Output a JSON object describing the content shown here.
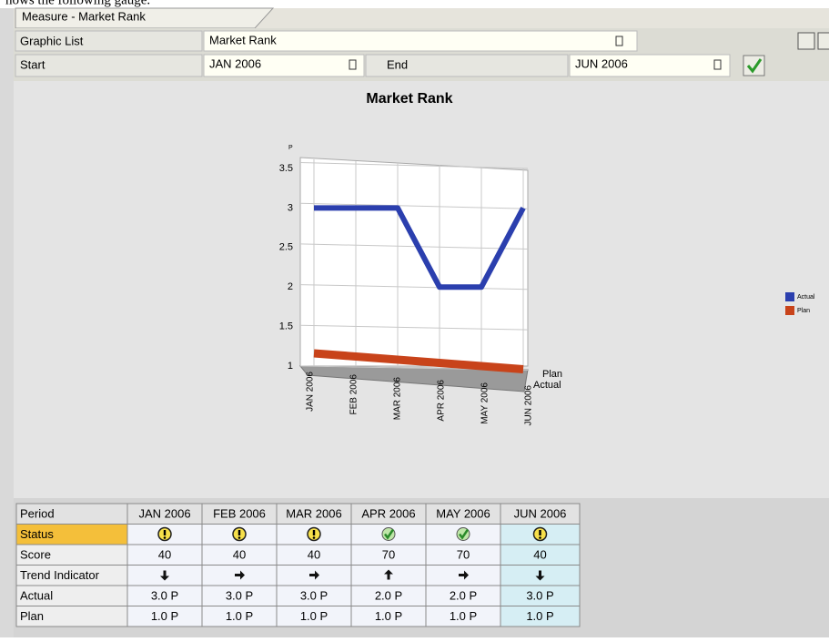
{
  "intro_text": "hows the following gauge.",
  "tab": "Measure - Market Rank",
  "form": {
    "graphic_list_label": "Graphic List",
    "graphic_list_value": "Market Rank",
    "start_label": "Start",
    "start_value": "JAN 2006",
    "end_label": "End",
    "end_value": "JUN 2006"
  },
  "chart_data": {
    "type": "line",
    "title": "Market Rank",
    "y_label": "P",
    "categories": [
      "JAN 2006",
      "FEB 2006",
      "MAR 2006",
      "APR 2006",
      "MAY 2006",
      "JUN 2006"
    ],
    "series": [
      {
        "name": "Actual",
        "color": "#2b3fae",
        "values": [
          3,
          3,
          3,
          2,
          2,
          3
        ]
      },
      {
        "name": "Plan",
        "color": "#c8431a",
        "values": [
          1,
          1,
          1,
          1,
          1,
          1
        ]
      }
    ],
    "ylim": [
      1,
      3.5
    ],
    "yticks": [
      1,
      1.5,
      2,
      2.5,
      3,
      3.5
    ],
    "grid": true
  },
  "table": {
    "header": [
      "Period",
      "JAN 2006",
      "FEB 2006",
      "MAR 2006",
      "APR 2006",
      "MAY 2006",
      "JUN 2006"
    ],
    "rows": [
      [
        "Status"
      ],
      [
        "Score",
        40,
        40,
        40,
        70,
        70,
        40
      ],
      [
        "Trend Indicator"
      ],
      [
        "Actual",
        "3.0 P",
        "3.0 P",
        "3.0 P",
        "2.0 P",
        "2.0 P",
        "3.0 P"
      ],
      [
        "Plan",
        "1.0 P",
        "1.0 P",
        "1.0 P",
        "1.0 P",
        "1.0 P",
        "1.0 P"
      ]
    ]
  }
}
